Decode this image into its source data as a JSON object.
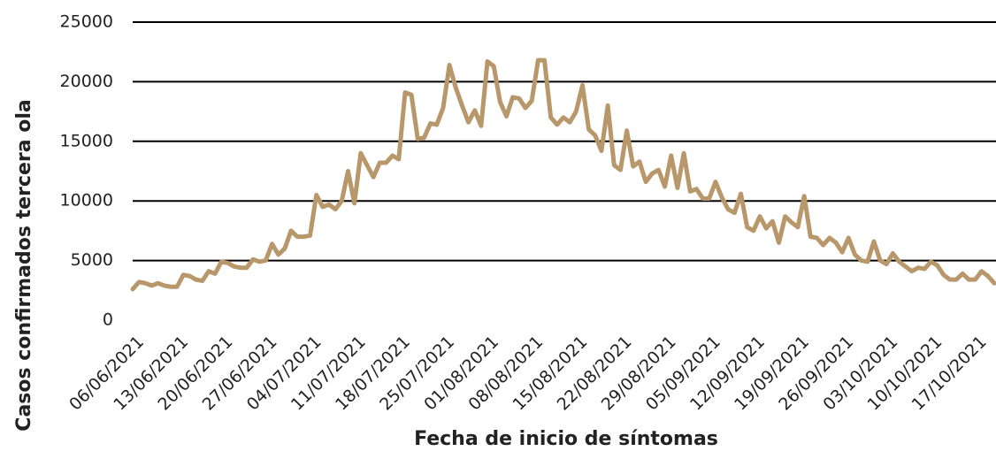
{
  "chart_data": {
    "type": "line",
    "x_label": "Fecha de inicio de síntomas",
    "y_label": "Casos confirmados tercera ola",
    "categories": [
      "06/06/2021",
      null,
      null,
      null,
      null,
      null,
      null,
      "13/06/2021",
      null,
      null,
      null,
      null,
      null,
      null,
      "20/06/2021",
      null,
      null,
      null,
      null,
      null,
      null,
      "27/06/2021",
      null,
      null,
      null,
      null,
      null,
      null,
      "04/07/2021",
      null,
      null,
      null,
      null,
      null,
      null,
      "11/07/2021",
      null,
      null,
      null,
      null,
      null,
      null,
      "18/07/2021",
      null,
      null,
      null,
      null,
      null,
      null,
      "25/07/2021",
      null,
      null,
      null,
      null,
      null,
      null,
      "01/08/2021",
      null,
      null,
      null,
      null,
      null,
      null,
      "08/08/2021",
      null,
      null,
      null,
      null,
      null,
      null,
      "15/08/2021",
      null,
      null,
      null,
      null,
      null,
      null,
      "22/08/2021",
      null,
      null,
      null,
      null,
      null,
      null,
      "29/08/2021",
      null,
      null,
      null,
      null,
      null,
      null,
      "05/09/2021",
      null,
      null,
      null,
      null,
      null,
      null,
      "12/09/2021",
      null,
      null,
      null,
      null,
      null,
      null,
      "19/09/2021",
      null,
      null,
      null,
      null,
      null,
      null,
      "26/09/2021",
      null,
      null,
      null,
      null,
      null,
      null,
      "03/10/2021",
      null,
      null,
      null,
      null,
      null,
      null,
      "10/10/2021",
      null,
      null,
      null,
      null,
      null,
      null,
      "17/10/2021",
      null,
      null,
      null
    ],
    "series": [
      {
        "color": "#b8976a",
        "values": [
          2600,
          3200,
          3100,
          2900,
          3100,
          2900,
          2800,
          2800,
          3800,
          3700,
          3400,
          3300,
          4100,
          3900,
          4900,
          4800,
          4500,
          4400,
          4400,
          5100,
          4900,
          5000,
          6400,
          5500,
          6000,
          7500,
          7000,
          7000,
          7100,
          10500,
          9500,
          9700,
          9300,
          10000,
          12500,
          9800,
          14000,
          13000,
          12000,
          13200,
          13200,
          13800,
          13500,
          19100,
          18900,
          15200,
          15300,
          16500,
          16400,
          17800,
          21400,
          19500,
          18000,
          16600,
          17600,
          16300,
          21700,
          21300,
          18300,
          17100,
          18700,
          18600,
          17800,
          18400,
          21800,
          21800,
          17000,
          16400,
          17000,
          16600,
          17500,
          19700,
          16000,
          15500,
          14200,
          18000,
          13000,
          12600,
          15900,
          12900,
          13300,
          11600,
          12300,
          12600,
          11200,
          13800,
          11100,
          14000,
          10800,
          11000,
          10200,
          10200,
          11600,
          10300,
          9300,
          9000,
          10600,
          7800,
          7500,
          8700,
          7700,
          8300,
          6500,
          8700,
          8200,
          7800,
          10400,
          7000,
          6900,
          6300,
          6900,
          6500,
          5700,
          6900,
          5500,
          5000,
          4900,
          6600,
          5000,
          4700,
          5600,
          4900,
          4500,
          4100,
          4400,
          4300,
          4900,
          4600,
          3800,
          3400,
          3400,
          3900,
          3400,
          3400,
          4100,
          3700,
          3100
        ]
      }
    ],
    "ylim": [
      0,
      25000
    ],
    "yticks": [
      0,
      5000,
      10000,
      15000,
      20000,
      25000
    ],
    "grid": true
  }
}
